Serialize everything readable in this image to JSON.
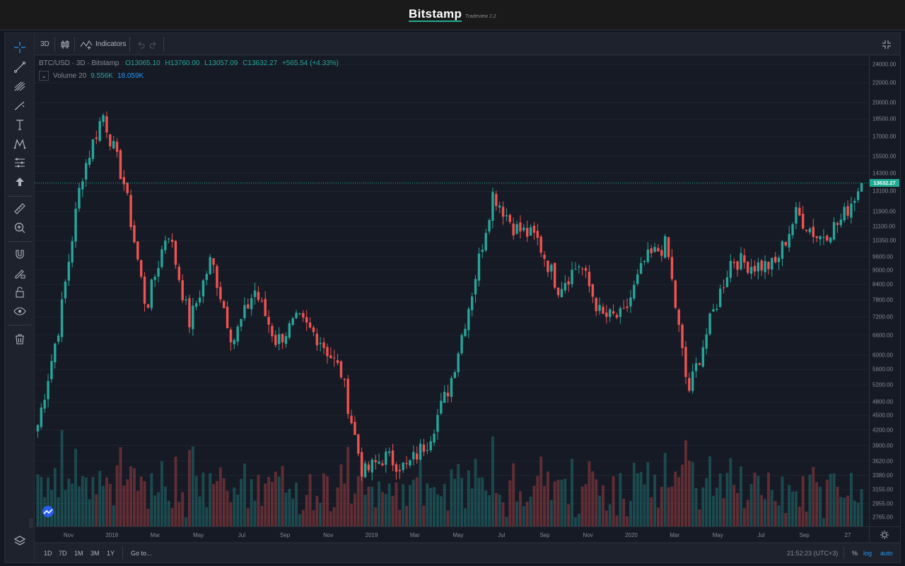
{
  "header": {
    "brand": "Bitstamp",
    "version": "Tradeview 2.2"
  },
  "toolbar": {
    "interval": "3D",
    "indicators_label": "Indicators"
  },
  "legend": {
    "symbol": "BTC/USD · 3D · Bitstamp",
    "open": "O13065.10",
    "high": "H13760.00",
    "low": "L13057.09",
    "close": "C13632.27",
    "change": "+565.54 (+4.33%)",
    "volume_label": "Volume 20",
    "volume_value": "9.556K",
    "volume_ma": "18.059K"
  },
  "price_axis": {
    "ticks": [
      "24000.00",
      "22000.00",
      "20000.00",
      "18500.00",
      "17000.00",
      "15500.00",
      "14300.00",
      "13100.00",
      "11900.00",
      "11100.00",
      "10350.00",
      "9600.00",
      "9000.00",
      "8400.00",
      "7800.00",
      "7200.00",
      "6600.00",
      "6000.00",
      "5600.00",
      "5200.00",
      "4800.00",
      "4500.00",
      "4200.00",
      "3900.00",
      "3620.00",
      "3380.00",
      "3155.00",
      "2955.00",
      "2765.00"
    ],
    "last_price": "13632.27"
  },
  "time_axis": {
    "ticks": [
      "Nov",
      "2018",
      "Mar",
      "May",
      "Jul",
      "Sep",
      "Nov",
      "2019",
      "Mar",
      "May",
      "Jul",
      "Sep",
      "Nov",
      "2020",
      "Mar",
      "May",
      "Jul",
      "Sep",
      "27"
    ]
  },
  "bottom": {
    "ranges": [
      "1D",
      "7D",
      "1M",
      "3M",
      "1Y"
    ],
    "goto": "Go to...",
    "clock": "21:52:23 (UTC+3)",
    "percent": "%",
    "log": "log",
    "auto": "auto"
  },
  "colors": {
    "up": "#26a69a",
    "down": "#ef5350",
    "background": "#161a25",
    "accent": "#22ab94"
  },
  "chart_data": {
    "type": "candlestick",
    "symbol": "BTC/USD",
    "interval": "3D",
    "scale": "log",
    "ylim": [
      2650,
      25000
    ],
    "close_series": [
      {
        "x": "2017-10",
        "y": 4300
      },
      {
        "x": "2017-11",
        "y": 7000
      },
      {
        "x": "2017-12",
        "y": 14000
      },
      {
        "x": "2017-12-17",
        "y": 19000
      },
      {
        "x": "2018-01",
        "y": 13500
      },
      {
        "x": "2018-02",
        "y": 7500
      },
      {
        "x": "2018-03",
        "y": 11000
      },
      {
        "x": "2018-04",
        "y": 7000
      },
      {
        "x": "2018-05",
        "y": 9500
      },
      {
        "x": "2018-06",
        "y": 6400
      },
      {
        "x": "2018-07",
        "y": 8200
      },
      {
        "x": "2018-08",
        "y": 6400
      },
      {
        "x": "2018-09",
        "y": 7100
      },
      {
        "x": "2018-10",
        "y": 6500
      },
      {
        "x": "2018-11",
        "y": 5500
      },
      {
        "x": "2018-12",
        "y": 3400
      },
      {
        "x": "2019-01",
        "y": 3700
      },
      {
        "x": "2019-02",
        "y": 3500
      },
      {
        "x": "2019-03",
        "y": 4000
      },
      {
        "x": "2019-04",
        "y": 5200
      },
      {
        "x": "2019-05",
        "y": 8000
      },
      {
        "x": "2019-06",
        "y": 13000
      },
      {
        "x": "2019-07",
        "y": 11000
      },
      {
        "x": "2019-08",
        "y": 10500
      },
      {
        "x": "2019-09",
        "y": 8300
      },
      {
        "x": "2019-10",
        "y": 9300
      },
      {
        "x": "2019-11",
        "y": 7200
      },
      {
        "x": "2019-12",
        "y": 7200
      },
      {
        "x": "2020-01",
        "y": 9400
      },
      {
        "x": "2020-02",
        "y": 10200
      },
      {
        "x": "2020-03",
        "y": 5000
      },
      {
        "x": "2020-04",
        "y": 7000
      },
      {
        "x": "2020-05",
        "y": 9500
      },
      {
        "x": "2020-06",
        "y": 9200
      },
      {
        "x": "2020-07",
        "y": 9200
      },
      {
        "x": "2020-08",
        "y": 11800
      },
      {
        "x": "2020-09",
        "y": 10500
      },
      {
        "x": "2020-10",
        "y": 11300
      },
      {
        "x": "2020-10-27",
        "y": 13632.27
      }
    ],
    "last": {
      "open": 13065.1,
      "high": 13760.0,
      "low": 13057.09,
      "close": 13632.27
    }
  }
}
